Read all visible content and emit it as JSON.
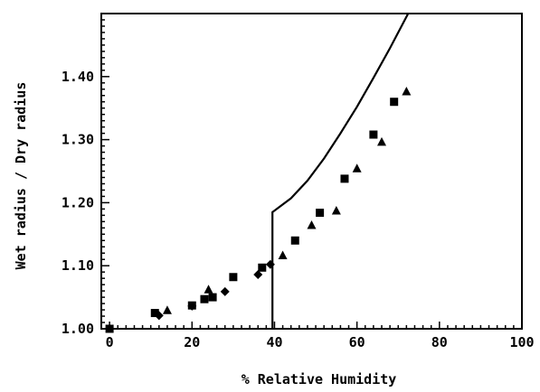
{
  "chart_data": {
    "type": "scatter",
    "title": "",
    "xlabel": "% Relative Humidity",
    "ylabel": "Wet radius / Dry radius",
    "xlim": [
      -2,
      100
    ],
    "ylim": [
      1.0,
      1.5
    ],
    "xticks": [
      0,
      20,
      40,
      60,
      80,
      100
    ],
    "yticks": [
      1.0,
      1.1,
      1.2,
      1.3,
      1.4
    ],
    "xtick_labels": [
      "0",
      "20",
      "40",
      "60",
      "80",
      "100"
    ],
    "ytick_labels": [
      "1.00",
      "1.10",
      "1.20",
      "1.30",
      "1.40"
    ],
    "grid": false,
    "legend": "none",
    "series": [
      {
        "marker": "square",
        "color": "#000000",
        "x": [
          0,
          11,
          20,
          23,
          25,
          30,
          37,
          45,
          51,
          57,
          64,
          69
        ],
        "y": [
          1.0,
          1.025,
          1.037,
          1.047,
          1.05,
          1.082,
          1.097,
          1.14,
          1.184,
          1.238,
          1.308,
          1.36
        ]
      },
      {
        "marker": "triangle",
        "color": "#000000",
        "x": [
          14,
          24,
          42,
          49,
          55,
          60,
          66,
          72
        ],
        "y": [
          1.029,
          1.062,
          1.116,
          1.164,
          1.187,
          1.254,
          1.296,
          1.376
        ]
      },
      {
        "marker": "diamond",
        "color": "#000000",
        "x": [
          12,
          20,
          28,
          36,
          39
        ],
        "y": [
          1.021,
          1.036,
          1.059,
          1.086,
          1.102
        ]
      },
      {
        "marker": "line",
        "color": "#000000",
        "x": [
          39.5,
          39.5,
          44,
          48,
          52,
          56,
          60,
          64,
          68,
          72,
          76
        ],
        "y": [
          1.0,
          1.185,
          1.207,
          1.235,
          1.27,
          1.31,
          1.352,
          1.398,
          1.445,
          1.495,
          1.545
        ]
      }
    ]
  }
}
